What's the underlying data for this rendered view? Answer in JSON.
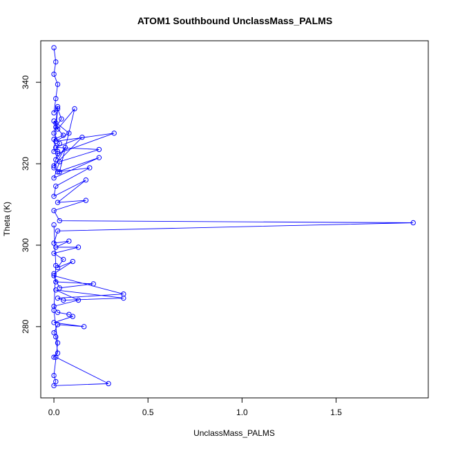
{
  "chart_data": {
    "type": "line",
    "title": "ATOM1 Southbound UnclassMass_PALMS",
    "xlabel": "UnclassMass_PALMS",
    "ylabel": "Theta (K)",
    "xlim": [
      -0.07,
      1.99
    ],
    "ylim": [
      262.5,
      350.2
    ],
    "xticks": [
      0.0,
      0.5,
      1.0,
      1.5
    ],
    "xtick_labels": [
      "0.0",
      "0.5",
      "1.0",
      "1.5"
    ],
    "yticks": [
      280,
      300,
      320,
      340
    ],
    "ytick_labels": [
      "280",
      "300",
      "320",
      "340"
    ],
    "grid": false,
    "legend": "none",
    "series_color": "#0000ff",
    "series": [
      {
        "values_note": "approximate trajectory read from the plot",
        "x": [
          0.0,
          0.01,
          0.0,
          0.02,
          0.01,
          0.0,
          0.02,
          0.01,
          0.0,
          0.03,
          0.0,
          0.02,
          0.04,
          0.01,
          0.05,
          0.0,
          0.02,
          0.01,
          0.06,
          0.0,
          0.03,
          0.11,
          0.02,
          0.0,
          0.08,
          0.01,
          0.32,
          0.02,
          0.0,
          0.15,
          0.01,
          0.24,
          0.03,
          0.0,
          0.24,
          0.02,
          0.19,
          0.01,
          0.0,
          0.17,
          0.02,
          0.17,
          0.0,
          0.03,
          1.91,
          0.02,
          0.0,
          0.08,
          0.01,
          0.13,
          0.0,
          0.05,
          0.02,
          0.1,
          0.0,
          0.01,
          0.21,
          0.03,
          0.0,
          0.37,
          0.02,
          0.05,
          0.37,
          0.01,
          0.13,
          0.0,
          0.02,
          0.08,
          0.1,
          0.0,
          0.16,
          0.02,
          0.0,
          0.01,
          0.02,
          0.0,
          0.01,
          0.29,
          0.0,
          0.01,
          0.0,
          0.02,
          0.0,
          0.01,
          0.0
        ],
        "y": [
          348.5,
          345.0,
          342.0,
          339.5,
          336.0,
          332.5,
          334.0,
          330.0,
          327.5,
          325.0,
          323.0,
          333.5,
          331.0,
          329.0,
          327.0,
          326.0,
          323.0,
          321.0,
          324.0,
          319.0,
          318.0,
          333.5,
          328.5,
          330.5,
          327.5,
          325.5,
          327.5,
          322.5,
          319.5,
          326.5,
          324.0,
          323.5,
          320.5,
          316.5,
          321.5,
          318.0,
          319.0,
          314.5,
          312.0,
          316.0,
          310.5,
          311.0,
          308.5,
          306.0,
          305.5,
          303.5,
          300.5,
          301.0,
          299.5,
          299.5,
          298.0,
          296.5,
          294.5,
          296.0,
          293.0,
          291.0,
          290.5,
          289.5,
          292.5,
          288.0,
          287.0,
          286.5,
          287.0,
          289.0,
          286.5,
          285.0,
          283.5,
          283.0,
          282.5,
          281.0,
          280.0,
          280.5,
          278.5,
          277.5,
          273.5,
          272.5,
          272.5,
          266.0,
          265.5,
          266.5,
          268.0,
          276.0,
          284.0,
          295.0,
          305.0
        ]
      }
    ]
  }
}
